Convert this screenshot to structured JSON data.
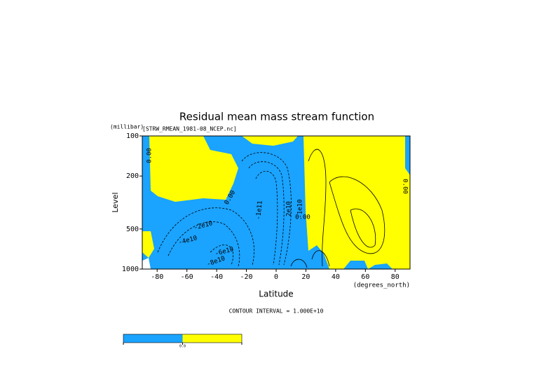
{
  "chart_data": {
    "type": "contour",
    "title": "Residual mean mass stream function",
    "subtitle": "[STRW_RMEAN_1981-08_NCEP.nc]",
    "y_unit": "(millibar)",
    "y_label": "Level",
    "x_label": "Latitude",
    "x_unit": "(degrees_north)",
    "footer": "CONTOUR INTERVAL = 1.000E+10",
    "xlim": [
      -90,
      90
    ],
    "xticks": [
      -80,
      -60,
      -40,
      -20,
      0,
      20,
      40,
      60,
      80
    ],
    "ylim": [
      1000,
      100
    ],
    "yticks": [
      100,
      200,
      500,
      1000
    ],
    "log_y": true,
    "contour_labels": [
      "0.00",
      "0.00",
      "0.00",
      "-2e10",
      "-4e10",
      "-6e10",
      "-8e10",
      "-1e11",
      "2e10",
      "-1e10",
      "0.00"
    ],
    "colorbar": {
      "colors": [
        "#1aa3ff",
        "#ffff00"
      ],
      "labels": [
        "0.0"
      ]
    }
  }
}
